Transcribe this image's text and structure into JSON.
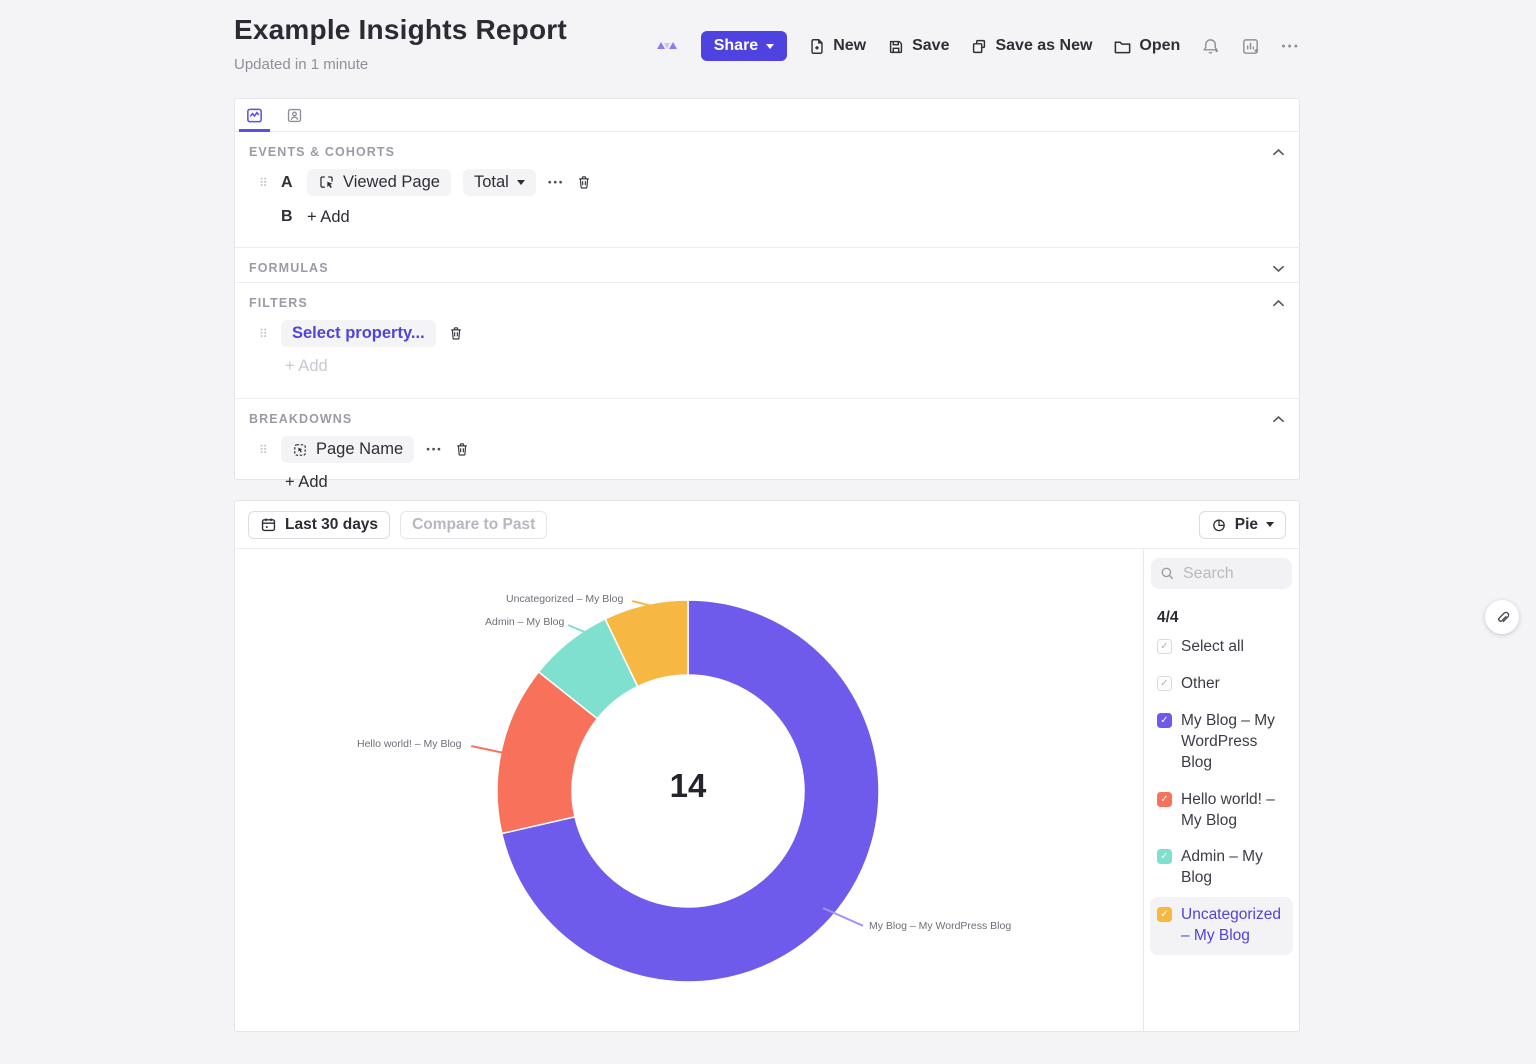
{
  "header": {
    "title": "Example Insights Report",
    "updated": "Updated in 1 minute",
    "share_label": "Share",
    "new_label": "New",
    "save_label": "Save",
    "save_as_new_label": "Save as New",
    "open_label": "Open"
  },
  "icons": {
    "drag_handle": "⠿",
    "row_ellipsis": "●●●",
    "toolbar_ellipsis": "●●●"
  },
  "query": {
    "events_section": "EVENTS & COHORTS",
    "row_a_letter": "A",
    "event_chip": "Viewed Page",
    "total_chip": "Total",
    "row_b_letter": "B",
    "row_b_add": "+ Add",
    "formulas_section": "FORMULAS",
    "filters_section": "FILTERS",
    "filter_chip": "Select property...",
    "filters_add": "+ Add",
    "breakdowns_section": "BREAKDOWNS",
    "breakdown_chip": "Page Name",
    "breakdowns_add": "+ Add"
  },
  "controls": {
    "date_range": "Last 30 days",
    "compare": "Compare to Past",
    "chart_type": "Pie"
  },
  "legend": {
    "search_placeholder": "Search",
    "count": "4/4",
    "select_all_label": "Select all",
    "other_label": "Other",
    "items": [
      {
        "label": "My Blog – My WordPress Blog",
        "color": "#6e5aeb",
        "checked": true,
        "highlighted": false
      },
      {
        "label": "Hello world! – My Blog",
        "color": "#f8715b",
        "checked": true,
        "highlighted": false
      },
      {
        "label": "Admin – My Blog",
        "color": "#7fe0cf",
        "checked": true,
        "highlighted": false
      },
      {
        "label": "Uncategorized – My Blog",
        "color": "#f6b843",
        "checked": true,
        "highlighted": true
      }
    ]
  },
  "chart_data": {
    "type": "pie",
    "donut": true,
    "title": "",
    "center_total": "14",
    "categories": [
      "My Blog – My WordPress Blog",
      "Hello world! – My Blog",
      "Admin – My Blog",
      "Uncategorized – My Blog"
    ],
    "values": [
      10,
      2,
      1,
      1
    ],
    "colors": [
      "#6e5aeb",
      "#f8715b",
      "#7fe0cf",
      "#f6b843"
    ],
    "connector_colors": [
      "#a296f1",
      "#f8715b",
      "#7fe0cf",
      "#f6b843"
    ],
    "legend_position": "right",
    "start_angle_deg": 0
  },
  "colors": {
    "accent": "#4e43e1",
    "panel_border": "#e5e5e9",
    "background": "#f4f4f6"
  }
}
